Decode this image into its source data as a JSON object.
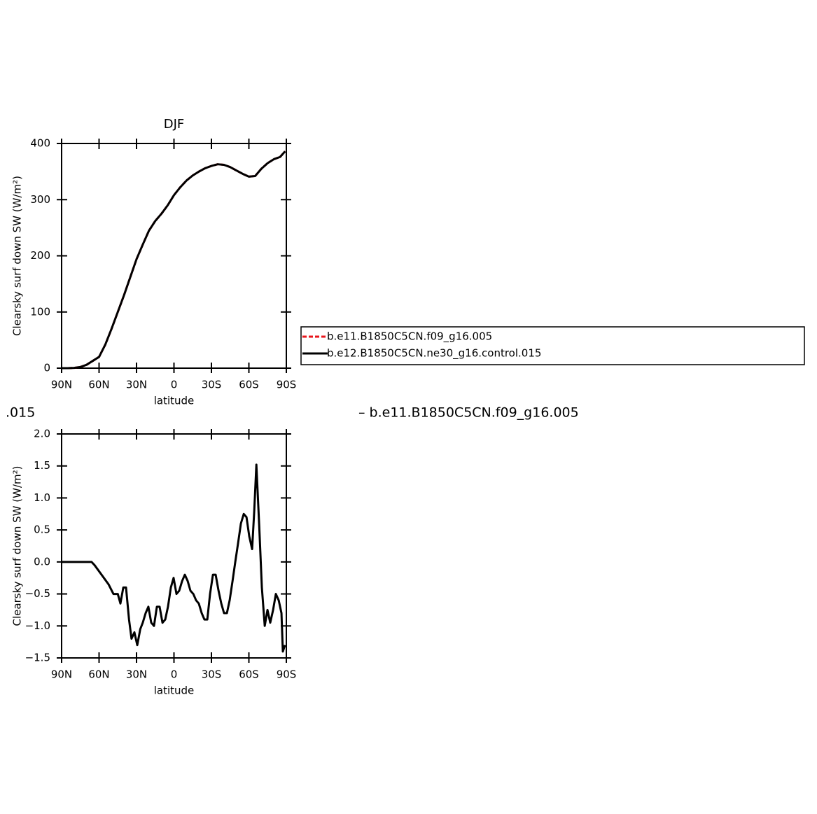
{
  "chart_data": [
    {
      "type": "line",
      "title": "DJF",
      "xlabel": "latitude",
      "ylabel": "Clearsky surf down SW (W/m²)",
      "x": [
        90,
        85,
        80,
        75,
        70,
        65,
        60,
        55,
        50,
        45,
        40,
        35,
        30,
        25,
        20,
        15,
        10,
        5,
        0,
        -5,
        -10,
        -15,
        -20,
        -25,
        -30,
        -35,
        -40,
        -45,
        -50,
        -55,
        -60,
        -65,
        -70,
        -75,
        -80,
        -85,
        -89
      ],
      "series": [
        {
          "name": "b.e11.B1850C5CN.f09_g16.005",
          "color": "#e8161b",
          "linestyle": "dashed",
          "values": [
            0,
            0,
            0.5,
            2,
            6,
            13,
            20,
            42,
            70,
            100,
            130,
            162,
            194,
            220,
            245,
            262,
            275,
            290,
            308,
            322,
            334,
            343,
            350,
            356,
            360,
            363,
            362,
            358,
            352,
            346,
            341,
            342,
            355,
            365,
            372,
            376,
            386
          ]
        },
        {
          "name": "b.e12.B1850C5CN.ne30_g16.control.015",
          "color": "#000000",
          "linestyle": "solid",
          "values": [
            0,
            0,
            0.5,
            2,
            6,
            13,
            20,
            42,
            70,
            100,
            130,
            162,
            194,
            220,
            245,
            262,
            275,
            290,
            308,
            322,
            334,
            343,
            350,
            356,
            360,
            363,
            362,
            358,
            352,
            346,
            341,
            342,
            355,
            365,
            372,
            376,
            386
          ]
        }
      ],
      "xlim": [
        90,
        -90
      ],
      "xticks": [
        {
          "value": 90,
          "label": "90N"
        },
        {
          "value": 60,
          "label": "60N"
        },
        {
          "value": 30,
          "label": "30N"
        },
        0,
        {
          "value": -30,
          "label": "30S"
        },
        {
          "value": -60,
          "label": "60S"
        },
        {
          "value": -90,
          "label": "90S"
        }
      ],
      "ylim": [
        0,
        400
      ],
      "yticks": [
        0,
        100,
        200,
        300,
        400
      ],
      "legend": "right"
    },
    {
      "type": "line",
      "xlabel": "latitude",
      "ylabel": "Clearsky surf down SW (W/m²)",
      "x": [
        90,
        80,
        70,
        66,
        63.6,
        58,
        52.4,
        48.5,
        45,
        42.9,
        40.6,
        38.4,
        36,
        34,
        31.7,
        29.4,
        27,
        25,
        22.7,
        20.5,
        18.2,
        16,
        13.7,
        11.5,
        9.2,
        7,
        4.8,
        2.5,
        0.3,
        -2,
        -4.2,
        -6.5,
        -8.7,
        -11,
        -13.2,
        -15.5,
        -17.7,
        -19.9,
        -22.2,
        -24.4,
        -26.7,
        -28.9,
        -31.2,
        -33.4,
        -35.7,
        -37.9,
        -40.1,
        -42.4,
        -44.6,
        -46.9,
        -49.1,
        -51.4,
        -53.6,
        -55.9,
        -58.1,
        -60.3,
        -62.6,
        -64.3,
        -66,
        -68.2,
        -70.4,
        -72.7,
        -74.9,
        -77.1,
        -79.4,
        -81.6,
        -83.9,
        -86.1,
        -87.2,
        -88.9
      ],
      "series": [
        {
          "color": "#000000",
          "values": [
            0,
            0,
            0,
            0,
            -0.05,
            -0.2,
            -0.35,
            -0.5,
            -0.5,
            -0.65,
            -0.4,
            -0.4,
            -0.9,
            -1.2,
            -1.1,
            -1.3,
            -1.05,
            -0.95,
            -0.8,
            -0.7,
            -0.95,
            -1.0,
            -0.7,
            -0.7,
            -0.95,
            -0.9,
            -0.7,
            -0.4,
            -0.25,
            -0.5,
            -0.45,
            -0.3,
            -0.2,
            -0.3,
            -0.45,
            -0.5,
            -0.6,
            -0.65,
            -0.8,
            -0.9,
            -0.9,
            -0.5,
            -0.2,
            -0.2,
            -0.45,
            -0.65,
            -0.8,
            -0.8,
            -0.6,
            -0.3,
            0.0,
            0.3,
            0.6,
            0.75,
            0.7,
            0.4,
            0.2,
            0.8,
            1.52,
            0.6,
            -0.4,
            -1.0,
            -0.75,
            -0.95,
            -0.75,
            -0.5,
            -0.6,
            -0.8,
            -1.4,
            -1.3
          ]
        }
      ],
      "xlim": [
        90,
        -90
      ],
      "xticks": [
        {
          "value": 90,
          "label": "90N"
        },
        {
          "value": 60,
          "label": "60N"
        },
        {
          "value": 30,
          "label": "30N"
        },
        0,
        {
          "value": -30,
          "label": "30S"
        },
        {
          "value": -60,
          "label": "60S"
        },
        {
          "value": -90,
          "label": "90S"
        }
      ],
      "ylim": [
        -1.5,
        2
      ],
      "yticks": [
        {
          "value": -1.5,
          "label": "−1.5"
        },
        {
          "value": -1,
          "label": "−1.0"
        },
        {
          "value": -0.5,
          "label": "−0.5"
        },
        {
          "value": 0,
          "label": "0.0"
        },
        0.5,
        {
          "value": 1,
          "label": "1.0"
        },
        1.5,
        {
          "value": 2,
          "label": "2.0"
        }
      ]
    }
  ],
  "fragments": [
    ".015",
    "– b.e11.B1850C5CN.f09_g16.005"
  ]
}
